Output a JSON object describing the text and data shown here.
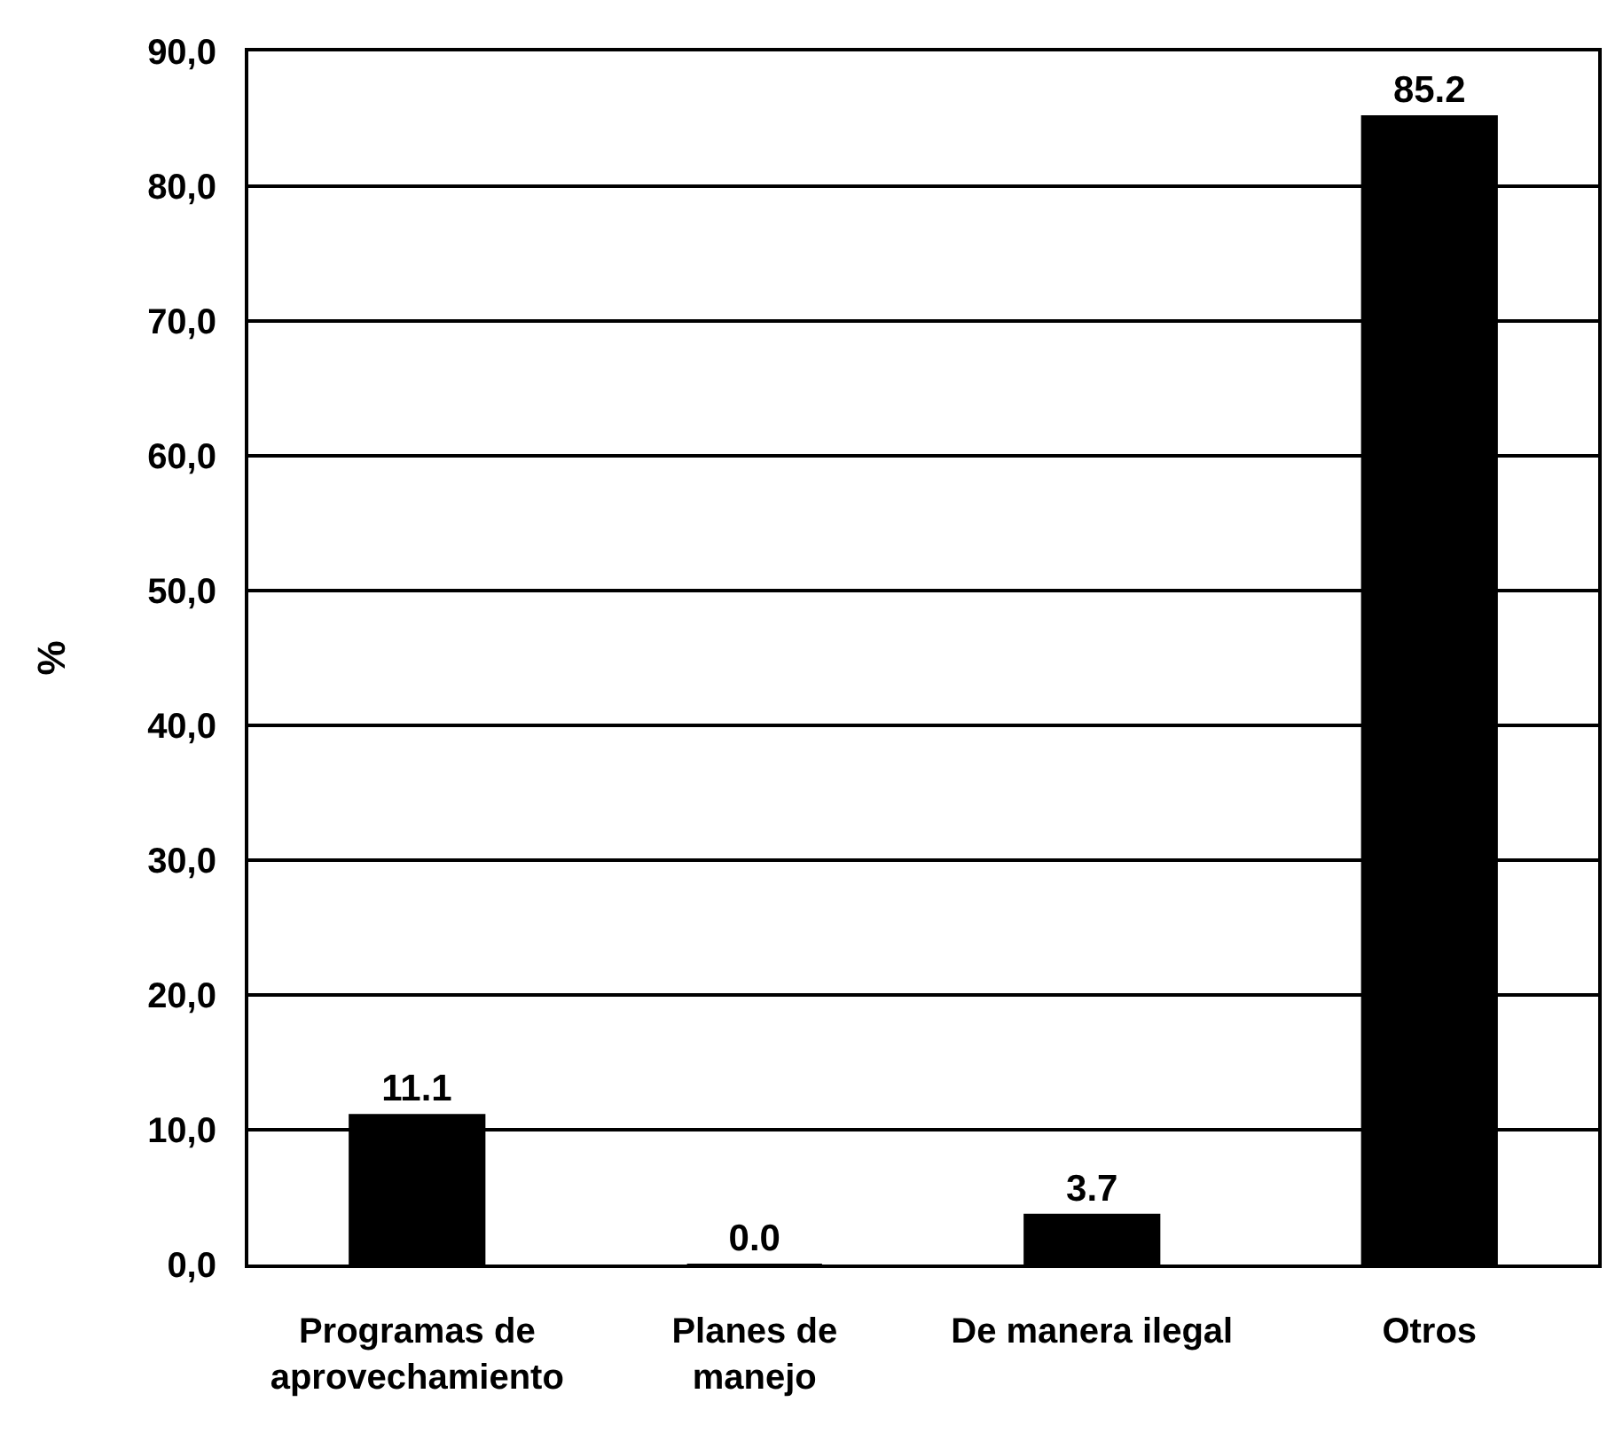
{
  "chart_data": {
    "type": "bar",
    "ylabel": "%",
    "categories": [
      "Programas de\naprovechamiento",
      "Planes de\nmanejo",
      "De manera ilegal",
      "Otros"
    ],
    "values": [
      11.1,
      0.0,
      3.7,
      85.2
    ],
    "color": "#000000",
    "value_labels": [
      "11.1",
      "0.0",
      "3.7",
      "85.2"
    ],
    "ylim": [
      0,
      90
    ],
    "yticks": [
      {
        "value": 0,
        "label": "0,0"
      },
      {
        "value": 10,
        "label": "10,0"
      },
      {
        "value": 20,
        "label": "20,0"
      },
      {
        "value": 30,
        "label": "30,0"
      },
      {
        "value": 40,
        "label": "40,0"
      },
      {
        "value": 50,
        "label": "50,0"
      },
      {
        "value": 60,
        "label": "60,0"
      },
      {
        "value": 70,
        "label": "70,0"
      },
      {
        "value": 80,
        "label": "80,0"
      },
      {
        "value": 90,
        "label": "90,0"
      }
    ],
    "grid": "y"
  }
}
